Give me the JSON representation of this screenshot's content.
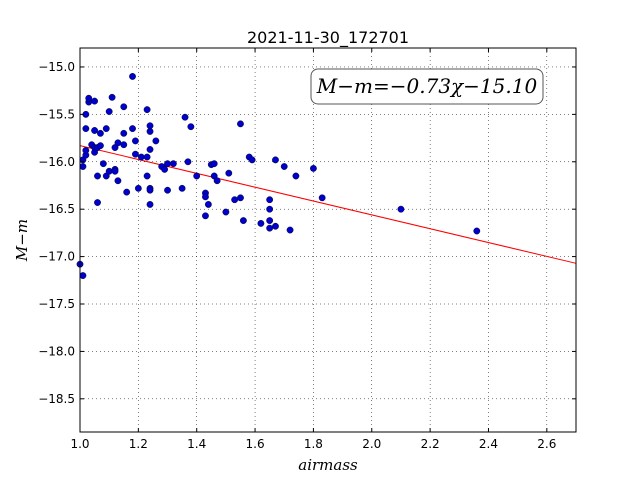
{
  "chart_data": {
    "type": "scatter",
    "title": "2021-11-30_172701",
    "xlabel": "airmass",
    "ylabel": "M−m",
    "xlim": [
      1.0,
      2.7
    ],
    "ylim": [
      -18.85,
      -14.8
    ],
    "xticks": [
      1.0,
      1.2,
      1.4,
      1.6,
      1.8,
      2.0,
      2.2,
      2.4,
      2.6
    ],
    "xtick_labels": [
      "1.0",
      "1.2",
      "1.4",
      "1.6",
      "1.8",
      "2.0",
      "2.2",
      "2.4",
      "2.6"
    ],
    "yticks": [
      -15.0,
      -15.5,
      -16.0,
      -16.5,
      -17.0,
      -17.5,
      -18.0,
      -18.5
    ],
    "ytick_labels": [
      "−15.0",
      "−15.5",
      "−16.0",
      "−16.5",
      "−17.0",
      "−17.5",
      "−18.0",
      "−18.5"
    ],
    "grid": true,
    "annotation": "M−m=−0.73χ−15.10",
    "marker_color": "#0000cc",
    "fit_line_color": "#ff0000",
    "fit": {
      "slope": -0.73,
      "intercept": -15.1
    },
    "points": [
      [
        1.0,
        -17.08
      ],
      [
        1.01,
        -17.2
      ],
      [
        1.01,
        -16.05
      ],
      [
        1.01,
        -15.98
      ],
      [
        1.02,
        -15.93
      ],
      [
        1.02,
        -15.88
      ],
      [
        1.02,
        -15.5
      ],
      [
        1.02,
        -15.65
      ],
      [
        1.03,
        -15.37
      ],
      [
        1.03,
        -15.33
      ],
      [
        1.04,
        -15.82
      ],
      [
        1.05,
        -15.85
      ],
      [
        1.05,
        -15.9
      ],
      [
        1.05,
        -15.67
      ],
      [
        1.05,
        -15.36
      ],
      [
        1.06,
        -16.15
      ],
      [
        1.06,
        -16.43
      ],
      [
        1.06,
        -15.85
      ],
      [
        1.07,
        -15.7
      ],
      [
        1.07,
        -15.83
      ],
      [
        1.08,
        -16.02
      ],
      [
        1.09,
        -15.65
      ],
      [
        1.09,
        -16.15
      ],
      [
        1.1,
        -16.1
      ],
      [
        1.1,
        -15.47
      ],
      [
        1.11,
        -15.32
      ],
      [
        1.12,
        -16.08
      ],
      [
        1.12,
        -16.1
      ],
      [
        1.12,
        -15.85
      ],
      [
        1.13,
        -16.2
      ],
      [
        1.13,
        -15.8
      ],
      [
        1.15,
        -15.42
      ],
      [
        1.15,
        -15.7
      ],
      [
        1.15,
        -15.82
      ],
      [
        1.16,
        -16.32
      ],
      [
        1.18,
        -15.1
      ],
      [
        1.18,
        -15.65
      ],
      [
        1.19,
        -15.78
      ],
      [
        1.19,
        -15.92
      ],
      [
        1.2,
        -16.28
      ],
      [
        1.21,
        -15.95
      ],
      [
        1.23,
        -15.95
      ],
      [
        1.23,
        -16.15
      ],
      [
        1.23,
        -15.45
      ],
      [
        1.24,
        -15.62
      ],
      [
        1.24,
        -15.68
      ],
      [
        1.24,
        -15.87
      ],
      [
        1.24,
        -16.28
      ],
      [
        1.24,
        -16.3
      ],
      [
        1.24,
        -16.45
      ],
      [
        1.26,
        -15.78
      ],
      [
        1.28,
        -16.05
      ],
      [
        1.29,
        -16.08
      ],
      [
        1.3,
        -16.02
      ],
      [
        1.3,
        -16.3
      ],
      [
        1.32,
        -16.02
      ],
      [
        1.35,
        -16.28
      ],
      [
        1.36,
        -15.53
      ],
      [
        1.37,
        -16.0
      ],
      [
        1.38,
        -15.63
      ],
      [
        1.4,
        -16.15
      ],
      [
        1.43,
        -16.33
      ],
      [
        1.43,
        -16.37
      ],
      [
        1.43,
        -16.57
      ],
      [
        1.44,
        -16.45
      ],
      [
        1.45,
        -16.03
      ],
      [
        1.46,
        -16.02
      ],
      [
        1.46,
        -16.15
      ],
      [
        1.47,
        -16.2
      ],
      [
        1.5,
        -16.53
      ],
      [
        1.51,
        -16.12
      ],
      [
        1.53,
        -16.4
      ],
      [
        1.55,
        -15.6
      ],
      [
        1.55,
        -16.38
      ],
      [
        1.56,
        -16.62
      ],
      [
        1.58,
        -15.95
      ],
      [
        1.59,
        -15.98
      ],
      [
        1.62,
        -16.65
      ],
      [
        1.65,
        -16.4
      ],
      [
        1.65,
        -16.5
      ],
      [
        1.65,
        -16.62
      ],
      [
        1.65,
        -16.7
      ],
      [
        1.67,
        -15.98
      ],
      [
        1.67,
        -16.68
      ],
      [
        1.7,
        -16.05
      ],
      [
        1.72,
        -16.72
      ],
      [
        1.74,
        -16.15
      ],
      [
        1.8,
        -16.07
      ],
      [
        1.83,
        -16.38
      ],
      [
        2.1,
        -16.5
      ],
      [
        2.36,
        -16.73
      ]
    ]
  }
}
